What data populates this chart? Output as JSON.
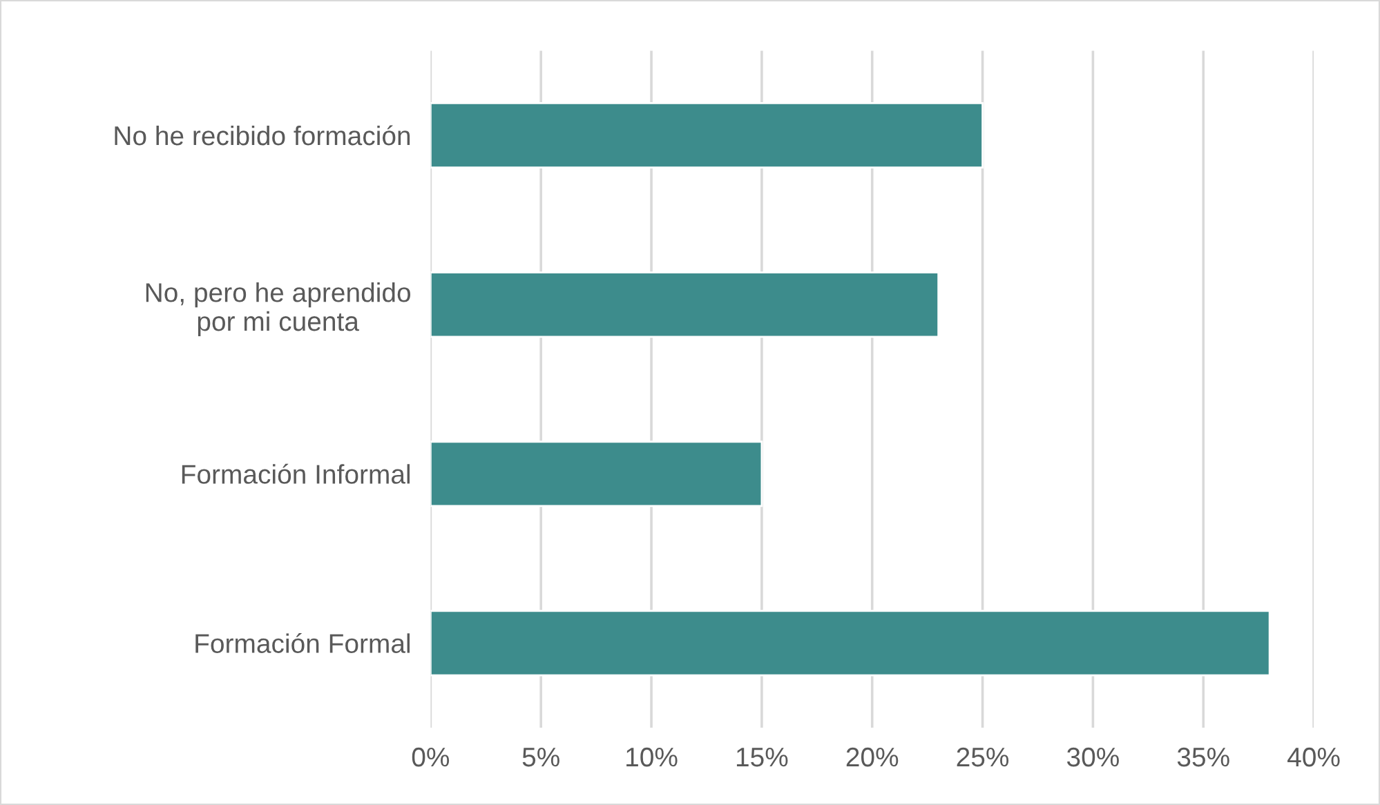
{
  "chart_data": {
    "type": "bar",
    "orientation": "horizontal",
    "categories": [
      "No he recibido formación",
      "No, pero he aprendido\npor mi cuenta",
      "Formación Informal",
      "Formación Formal"
    ],
    "values": [
      25,
      23,
      15,
      38
    ],
    "color": "#3d8c8c",
    "xlim": [
      0,
      40
    ],
    "xticks": [
      {
        "value": 0,
        "label": "0%"
      },
      {
        "value": 5,
        "label": "5%"
      },
      {
        "value": 10,
        "label": "10%"
      },
      {
        "value": 15,
        "label": "15%"
      },
      {
        "value": 20,
        "label": "20%"
      },
      {
        "value": 25,
        "label": "25%"
      },
      {
        "value": 30,
        "label": "30%"
      },
      {
        "value": 35,
        "label": "35%"
      },
      {
        "value": 40,
        "label": "40%"
      }
    ],
    "grid": "x",
    "legend": false
  }
}
